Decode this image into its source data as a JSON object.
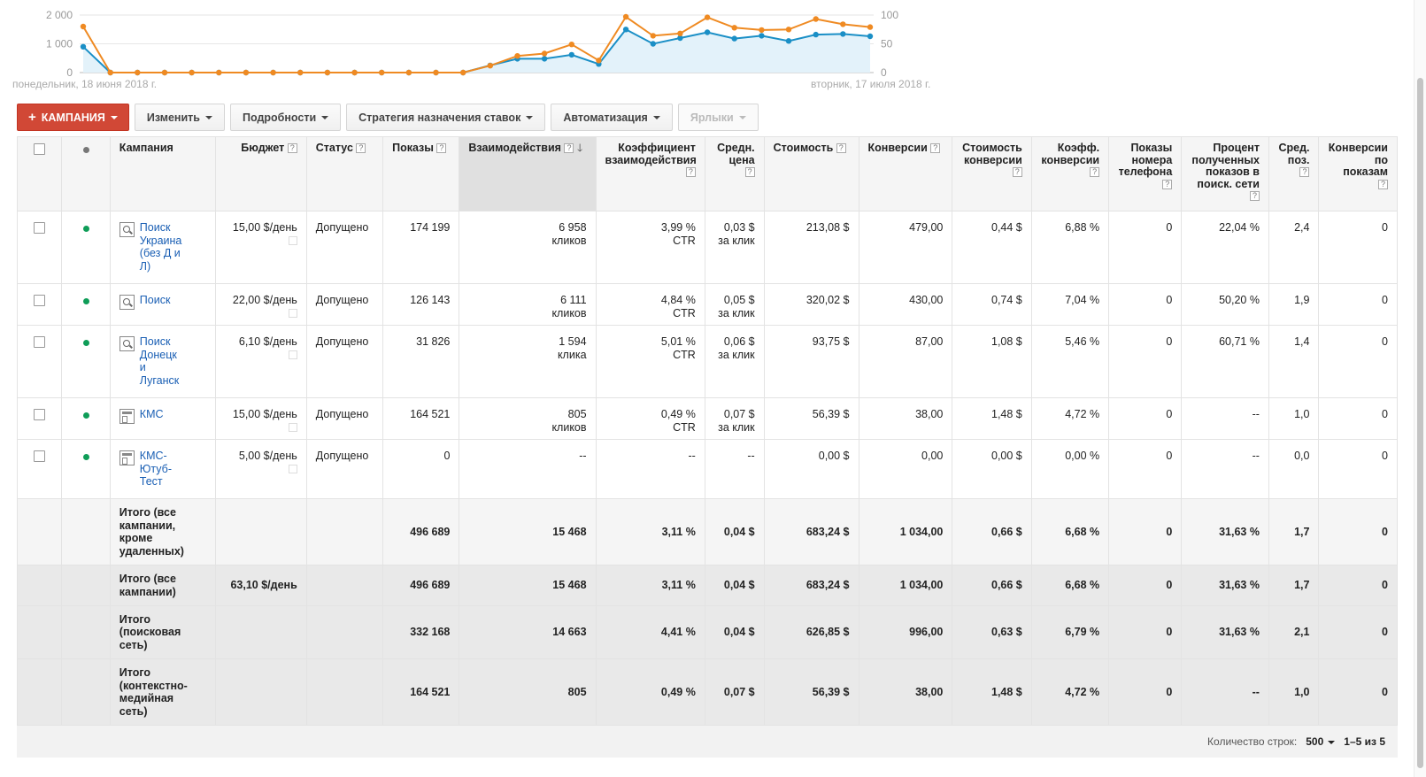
{
  "chart_data": {
    "type": "line",
    "y_left_ticks": [
      "2 000",
      "1 000",
      "0"
    ],
    "y_right_ticks": [
      "100",
      "50",
      "0"
    ],
    "y_left_range": [
      0,
      2000
    ],
    "y_right_range": [
      0,
      100
    ],
    "start_label": "понедельник, 18 июня 2018 г.",
    "end_label": "вторник, 17 июля 2018 г.",
    "series": [
      {
        "color": "#1a8fc6",
        "axis": "left",
        "values": [
          900,
          0,
          0,
          0,
          0,
          0,
          0,
          0,
          0,
          0,
          0,
          0,
          0,
          0,
          0,
          250,
          480,
          480,
          620,
          300,
          1500,
          1000,
          1200,
          1400,
          1180,
          1280,
          1100,
          1320,
          1340,
          1260
        ]
      },
      {
        "color": "#ef8a22",
        "axis": "right",
        "values": [
          80,
          0,
          0,
          0,
          0,
          0,
          0,
          0,
          0,
          0,
          0,
          0,
          0,
          0,
          0,
          12,
          29,
          33,
          49,
          21,
          97,
          64,
          68,
          96,
          78,
          74,
          75,
          93,
          84,
          79
        ]
      }
    ]
  },
  "toolbar": {
    "campaign_label": "КАМПАНИЯ",
    "edit_label": "Изменить",
    "details_label": "Подробности",
    "bidding_label": "Стратегия назначения ставок",
    "automation_label": "Автоматизация",
    "labels_label": "Ярлыки"
  },
  "table": {
    "headers": {
      "campaign": "Кампания",
      "budget": "Бюджет",
      "status": "Статус",
      "impressions": "Показы",
      "interactions": "Взаимодействия",
      "interaction_rate_1": "Коэффициент",
      "interaction_rate_2": "взаимодействия",
      "avg_cost_1": "Средн.",
      "avg_cost_2": "цена",
      "cost": "Стоимость",
      "conversions": "Конверсии",
      "cost_conv_1": "Стоимость",
      "cost_conv_2": "конверсии",
      "conv_rate_1": "Коэфф.",
      "conv_rate_2": "конверсии",
      "phone_1": "Показы",
      "phone_2": "номера",
      "phone_3": "телефона",
      "search_is_1": "Процент",
      "search_is_2": "полученных",
      "search_is_3": "показов в",
      "search_is_4": "поиск. сети",
      "avg_pos_1": "Сред.",
      "avg_pos_2": "поз.",
      "view_conv_1": "Конверсии",
      "view_conv_2": "по",
      "view_conv_3": "показам"
    },
    "rows": [
      {
        "icon": "search-icon",
        "name": [
          "Поиск",
          "Украина",
          "(без Д и",
          "Л)"
        ],
        "budget": "15,00 $/день",
        "status": "Допущено",
        "impressions": "174 199",
        "interactions": "6 958",
        "interactions_unit": "кликов",
        "rate": "3,99 %",
        "rate_unit": "CTR",
        "avg_cost": "0,03 $",
        "avg_cost_unit": "за клик",
        "cost": "213,08 $",
        "conversions": "479,00",
        "cost_conv": "0,44 $",
        "conv_rate": "6,88 %",
        "phone": "0",
        "search_is": "22,04 %",
        "avg_pos": "2,4",
        "view_conv": "0"
      },
      {
        "icon": "search-icon",
        "name": [
          "Поиск"
        ],
        "budget": "22,00 $/день",
        "status": "Допущено",
        "impressions": "126 143",
        "interactions": "6 111",
        "interactions_unit": "кликов",
        "rate": "4,84 %",
        "rate_unit": "CTR",
        "avg_cost": "0,05 $",
        "avg_cost_unit": "за клик",
        "cost": "320,02 $",
        "conversions": "430,00",
        "cost_conv": "0,74 $",
        "conv_rate": "7,04 %",
        "phone": "0",
        "search_is": "50,20 %",
        "avg_pos": "1,9",
        "view_conv": "0"
      },
      {
        "icon": "search-icon",
        "name": [
          "Поиск",
          "Донецк",
          "и",
          "Луганск"
        ],
        "budget": "6,10 $/день",
        "status": "Допущено",
        "impressions": "31 826",
        "interactions": "1 594",
        "interactions_unit": "клика",
        "rate": "5,01 %",
        "rate_unit": "CTR",
        "avg_cost": "0,06 $",
        "avg_cost_unit": "за клик",
        "cost": "93,75 $",
        "conversions": "87,00",
        "cost_conv": "1,08 $",
        "conv_rate": "5,46 %",
        "phone": "0",
        "search_is": "60,71 %",
        "avg_pos": "1,4",
        "view_conv": "0"
      },
      {
        "icon": "display-icon",
        "name": [
          "КМС"
        ],
        "budget": "15,00 $/день",
        "status": "Допущено",
        "impressions": "164 521",
        "interactions": "805",
        "interactions_unit": "кликов",
        "rate": "0,49 %",
        "rate_unit": "CTR",
        "avg_cost": "0,07 $",
        "avg_cost_unit": "за клик",
        "cost": "56,39 $",
        "conversions": "38,00",
        "cost_conv": "1,48 $",
        "conv_rate": "4,72 %",
        "phone": "0",
        "search_is": "--",
        "avg_pos": "1,0",
        "view_conv": "0"
      },
      {
        "icon": "display-icon",
        "name": [
          "КМС-",
          "Ютуб-",
          "Тест"
        ],
        "budget": "5,00 $/день",
        "status": "Допущено",
        "impressions": "0",
        "interactions": "--",
        "interactions_unit": "",
        "rate": "--",
        "rate_unit": "",
        "avg_cost": "--",
        "avg_cost_unit": "",
        "cost": "0,00 $",
        "conversions": "0,00",
        "cost_conv": "0,00 $",
        "conv_rate": "0,00 %",
        "phone": "0",
        "search_is": "--",
        "avg_pos": "0,0",
        "view_conv": "0"
      }
    ],
    "totals": [
      {
        "label": [
          "Итого (все",
          "кампании,",
          "кроме",
          "удаленных)"
        ],
        "budget": "",
        "impressions": "496 689",
        "interactions": "15 468",
        "rate": "3,11 %",
        "avg_cost": "0,04 $",
        "cost": "683,24 $",
        "conversions": "1 034,00",
        "cost_conv": "0,66 $",
        "conv_rate": "6,68 %",
        "phone": "0",
        "search_is": "31,63 %",
        "avg_pos": "1,7",
        "view_conv": "0"
      },
      {
        "label": [
          "Итого (все",
          "кампании)"
        ],
        "budget": "63,10 $/день",
        "impressions": "496 689",
        "interactions": "15 468",
        "rate": "3,11 %",
        "avg_cost": "0,04 $",
        "cost": "683,24 $",
        "conversions": "1 034,00",
        "cost_conv": "0,66 $",
        "conv_rate": "6,68 %",
        "phone": "0",
        "search_is": "31,63 %",
        "avg_pos": "1,7",
        "view_conv": "0"
      },
      {
        "label": [
          "Итого",
          "(поисковая",
          "сеть)"
        ],
        "budget": "",
        "impressions": "332 168",
        "interactions": "14 663",
        "rate": "4,41 %",
        "avg_cost": "0,04 $",
        "cost": "626,85 $",
        "conversions": "996,00",
        "cost_conv": "0,63 $",
        "conv_rate": "6,79 %",
        "phone": "0",
        "search_is": "31,63 %",
        "avg_pos": "2,1",
        "view_conv": "0"
      },
      {
        "label": [
          "Итого",
          "(контекстно-",
          "медийная",
          "сеть)"
        ],
        "budget": "",
        "impressions": "164 521",
        "interactions": "805",
        "rate": "0,49 %",
        "avg_cost": "0,07 $",
        "cost": "56,39 $",
        "conversions": "38,00",
        "cost_conv": "1,48 $",
        "conv_rate": "4,72 %",
        "phone": "0",
        "search_is": "--",
        "avg_pos": "1,0",
        "view_conv": "0"
      }
    ]
  },
  "footer": {
    "rows_label": "Количество строк:",
    "rows_value": "500",
    "range": "1–5 из 5"
  }
}
